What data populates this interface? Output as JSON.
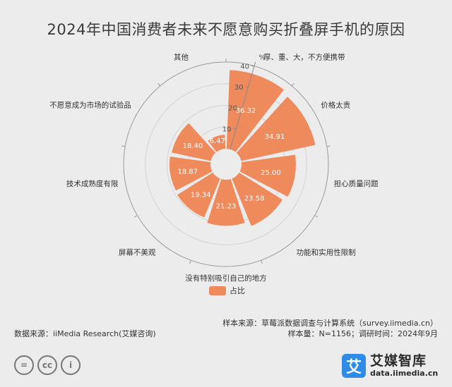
{
  "title": "2024年中国消费者未来不愿意购买折叠屏手机的原因",
  "chart_data": {
    "type": "polar-bar",
    "unit": "%",
    "radial_ticks": [
      10,
      20,
      30,
      40
    ],
    "rmax": 40,
    "categories": [
      "厚、重、大，不方便携带",
      "价格太贵",
      "担心质量问题",
      "功能和实用性限制",
      "没有特别吸引自己的地方",
      "屏幕不美观",
      "技术成熟度有限",
      "不愿意成为市场的试验品",
      "其他"
    ],
    "series": [
      {
        "name": "占比",
        "values": [
          36.32,
          34.91,
          25.0,
          23.58,
          21.23,
          19.34,
          18.87,
          18.4,
          6.47
        ]
      }
    ],
    "value_labels": [
      "36.32",
      "34.91",
      "25.00",
      "23.58",
      "21.23",
      "19.34",
      "18.87",
      "18.40",
      "6.47"
    ],
    "color": "#ee8a5b",
    "legend_position": "bottom"
  },
  "source_sample": "样本来源：草莓派数据调查与计算系统（survey.iimedia.cn）",
  "source_data": "数据来源：iiMedia Research(艾媒咨询)",
  "sample_size": "样本量：N=1156；调研时间：2024年9月",
  "cc_icons": [
    "=",
    "cc",
    "i"
  ],
  "logo": {
    "mark": "艾",
    "name": "艾媒智库",
    "url": "data.iimedia.cn",
    "color": "#2e8be8"
  }
}
